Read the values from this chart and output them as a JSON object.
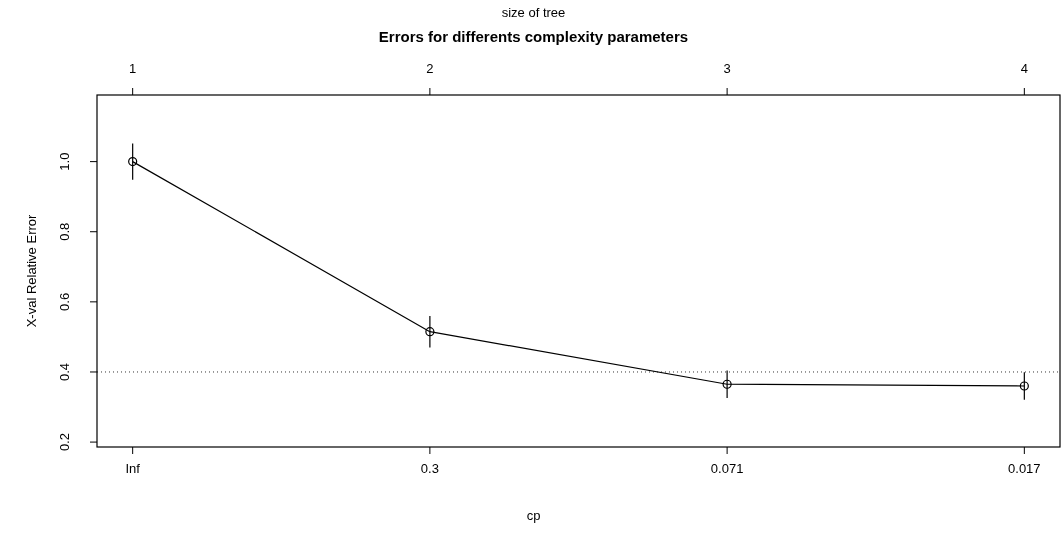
{
  "chart_data": {
    "type": "line",
    "title": "Errors for differents complexity parameters",
    "xlabel": "cp",
    "ylabel": "X-val Relative Error",
    "x2label": "size of tree",
    "categories": [
      "Inf",
      "0.3",
      "0.071",
      "0.017"
    ],
    "series": [
      {
        "color": "#000000",
        "values": [
          1.0,
          0.515,
          0.365,
          0.36
        ],
        "errors": [
          0.052,
          0.045,
          0.039,
          0.039
        ]
      }
    ],
    "ylim": [
      0.186,
      1.19
    ],
    "yticks": [
      0.2,
      0.4,
      0.6,
      0.8,
      {
        "value": 1,
        "label": "1.0"
      }
    ],
    "x2lim": [
      0.88,
      4.12
    ],
    "x2ticks": [
      1,
      2,
      3,
      4
    ],
    "ref_lines": [
      {
        "axis": "y",
        "value": 0.4,
        "line_style": "dotted",
        "color": "#000000"
      }
    ],
    "marker": "circle",
    "line_style": "solid",
    "grid": false
  }
}
